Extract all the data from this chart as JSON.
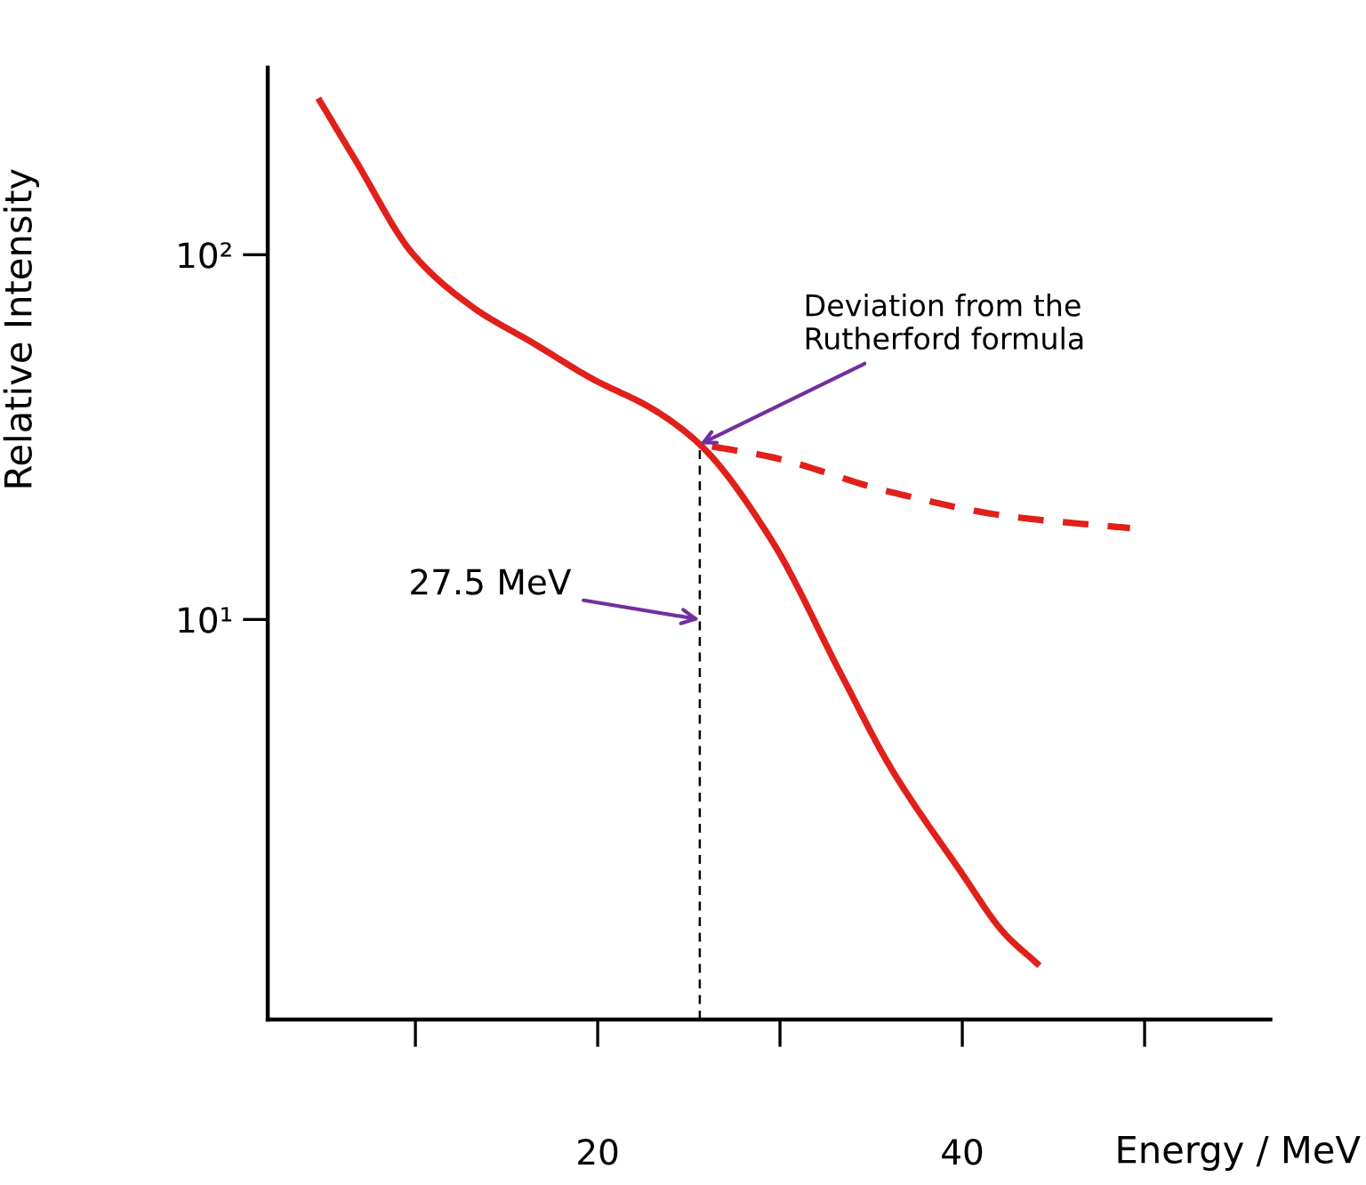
{
  "chart_data": {
    "type": "line",
    "xlabel": "Energy / MeV",
    "ylabel": "Relative Intensity",
    "log": "y",
    "xlim": [
      1.9,
      56.9
    ],
    "ylim": [
      0.8,
      326
    ],
    "xticks": [
      {
        "value": 10,
        "label": null
      },
      20,
      {
        "value": 30,
        "label": null
      },
      40,
      {
        "value": 50,
        "label": null
      }
    ],
    "yticks": [
      {
        "value": 10,
        "label": "10¹"
      },
      {
        "value": 100,
        "label": "10²"
      }
    ],
    "grid": false,
    "legend": false,
    "marker": "none",
    "series": [
      {
        "color": "#e0201b",
        "line_style": "solid",
        "x": [
          4.76,
          6.7,
          9.9,
          13.2,
          16.5,
          19.7,
          23.0,
          25.6,
          29.5,
          33.4,
          36.0,
          39.9,
          42.3,
          44.1
        ],
        "values": [
          264,
          182,
          100,
          71.5,
          57.1,
          45.7,
          37.8,
          30.2,
          16.6,
          7.0,
          3.98,
          2.04,
          1.38,
          1.14
        ]
      },
      {
        "color": "#e0201b",
        "line_style": "dashed",
        "x": [
          25.6,
          29.5,
          36.0,
          42.5,
          49.2
        ],
        "values": [
          30.2,
          27.9,
          22.4,
          19.2,
          17.8
        ]
      }
    ],
    "ref_lines": [
      {
        "axis": "x",
        "value": 25.6,
        "color": "#000000",
        "line_style": "dashed"
      }
    ],
    "annotations": [
      {
        "text": "Deviation from the\nRutherford formula",
        "x": 25.6,
        "y": 30.2
      },
      {
        "text": "27.5 MeV",
        "x": 25.6,
        "y": 10
      }
    ]
  }
}
